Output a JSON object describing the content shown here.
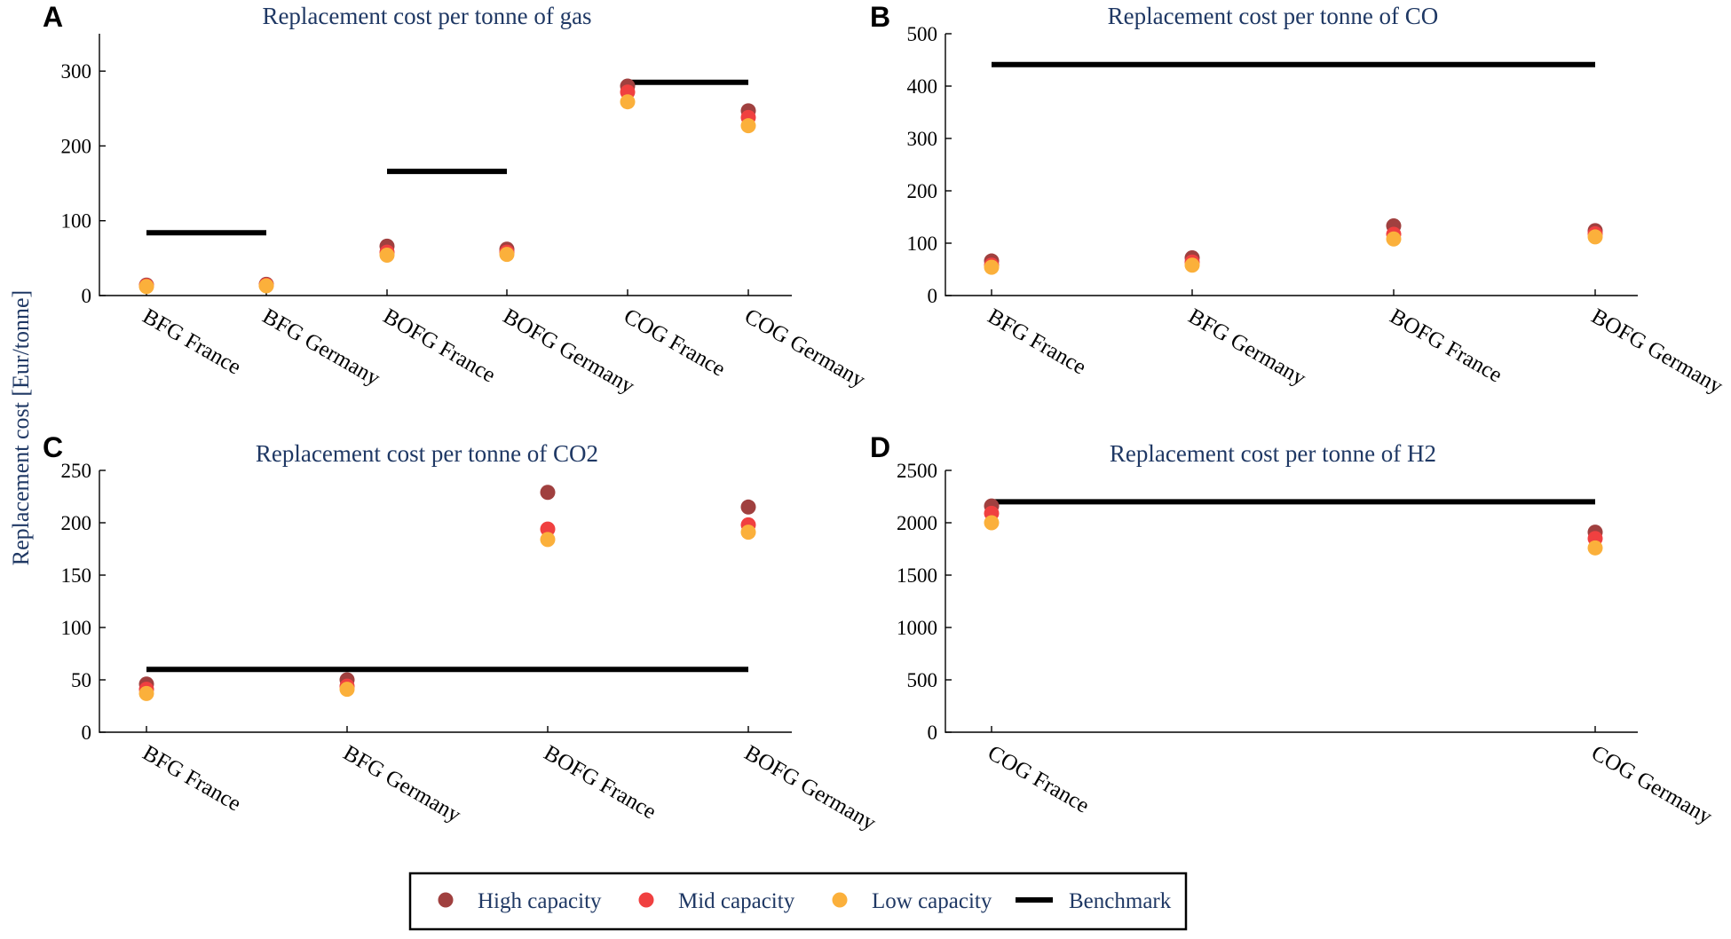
{
  "figure": {
    "ylabel": "Replacement cost [Eur/tonne]"
  },
  "series_meta": [
    {
      "name": "High capacity",
      "color": "#a0403f"
    },
    {
      "name": "Mid capacity",
      "color": "#f04040"
    },
    {
      "name": "Low capacity",
      "color": "#fbb03b"
    },
    {
      "name": "Benchmark",
      "color": "#000000"
    }
  ],
  "chart_data": [
    {
      "type": "scatter",
      "letter": "A",
      "title": "Replacement cost per tonne of gas",
      "categories": [
        "BFG France",
        "BFG Germany",
        "BOFG France",
        "BOFG Germany",
        "COG France",
        "COG Germany"
      ],
      "ylim": [
        0,
        350
      ],
      "yticks": [
        0,
        100,
        200,
        300
      ],
      "series": [
        {
          "name": "High capacity",
          "values": [
            14,
            15,
            66,
            62,
            280,
            247
          ]
        },
        {
          "name": "Mid capacity",
          "values": [
            13,
            14,
            58,
            58,
            272,
            238
          ]
        },
        {
          "name": "Low capacity",
          "values": [
            12,
            13,
            54,
            55,
            259,
            227
          ]
        }
      ],
      "benchmarks": [
        {
          "from": 0,
          "to": 1,
          "value": 84
        },
        {
          "from": 2,
          "to": 3,
          "value": 166
        },
        {
          "from": 4,
          "to": 5,
          "value": 285
        }
      ]
    },
    {
      "type": "scatter",
      "letter": "B",
      "title": "Replacement cost per tonne of CO",
      "categories": [
        "BFG France",
        "BFG Germany",
        "BOFG France",
        "BOFG Germany"
      ],
      "ylim": [
        0,
        500
      ],
      "yticks": [
        0,
        100,
        200,
        300,
        400,
        500
      ],
      "series": [
        {
          "name": "High capacity",
          "values": [
            66,
            72,
            133,
            124
          ]
        },
        {
          "name": "Mid capacity",
          "values": [
            58,
            64,
            117,
            118
          ]
        },
        {
          "name": "Low capacity",
          "values": [
            54,
            58,
            108,
            112
          ]
        }
      ],
      "benchmarks": [
        {
          "from": 0,
          "to": 3,
          "value": 441
        }
      ]
    },
    {
      "type": "scatter",
      "letter": "C",
      "title": "Replacement cost per tonne of CO2",
      "categories": [
        "BFG France",
        "BFG Germany",
        "BOFG France",
        "BOFG Germany"
      ],
      "ylim": [
        0,
        250
      ],
      "yticks": [
        0,
        50,
        100,
        150,
        200,
        250
      ],
      "series": [
        {
          "name": "High capacity",
          "values": [
            46,
            50,
            229,
            215
          ]
        },
        {
          "name": "Mid capacity",
          "values": [
            41,
            44,
            194,
            198
          ]
        },
        {
          "name": "Low capacity",
          "values": [
            37,
            41,
            184,
            191
          ]
        }
      ],
      "benchmarks": [
        {
          "from": 0,
          "to": 3,
          "value": 60
        }
      ]
    },
    {
      "type": "scatter",
      "letter": "D",
      "title": "Replacement cost per tonne of H2",
      "categories": [
        "COG France",
        "COG Germany"
      ],
      "ylim": [
        0,
        2500
      ],
      "yticks": [
        0,
        500,
        1000,
        1500,
        2000,
        2500
      ],
      "series": [
        {
          "name": "High capacity",
          "values": [
            2160,
            1910
          ]
        },
        {
          "name": "Mid capacity",
          "values": [
            2090,
            1850
          ]
        },
        {
          "name": "Low capacity",
          "values": [
            2000,
            1760
          ]
        }
      ],
      "benchmarks": [
        {
          "from": 0,
          "to": 1,
          "value": 2200
        }
      ]
    }
  ]
}
